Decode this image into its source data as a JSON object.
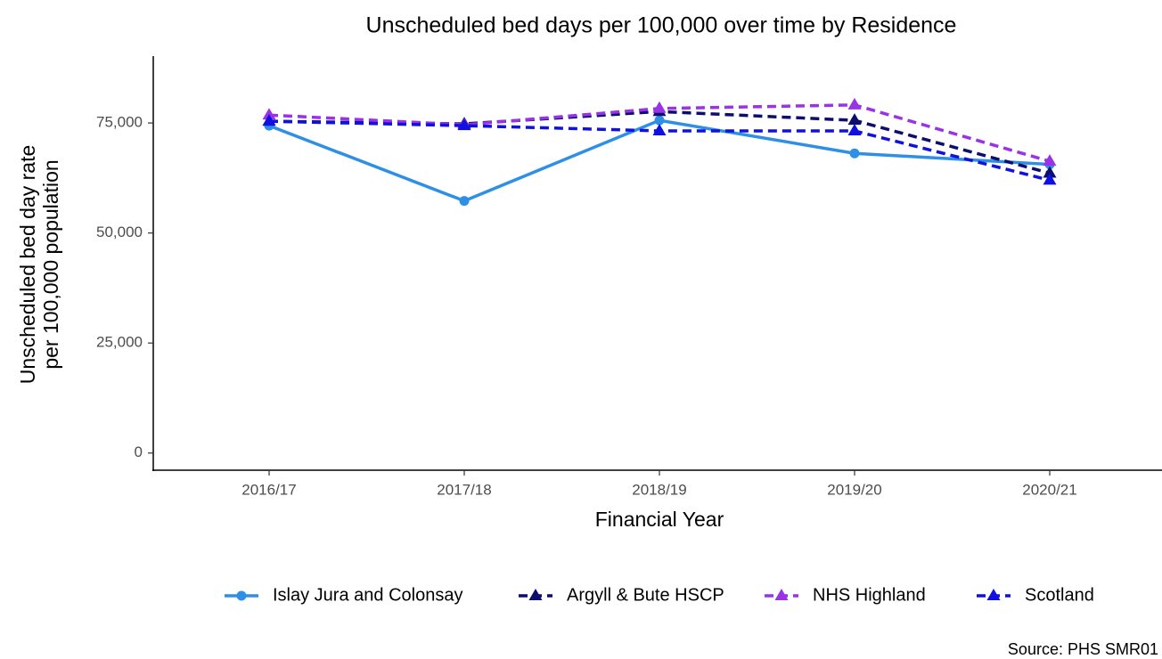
{
  "chart_data": {
    "type": "line",
    "title": "Unscheduled bed days per 100,000 over time by Residence",
    "xlabel": "Financial Year",
    "ylabel": [
      "Unscheduled bed day rate",
      "per 100,000 population"
    ],
    "categories": [
      "2016/17",
      "2017/18",
      "2018/19",
      "2019/20",
      "2020/21"
    ],
    "ylim": [
      -3900,
      90200
    ],
    "yticks": [
      0,
      {
        "value": 25000,
        "label": "25,000"
      },
      {
        "value": 50000,
        "label": "50,000"
      },
      {
        "value": 75000,
        "label": "75,000"
      }
    ],
    "grid": false,
    "legend": "bottom",
    "source": "Source: PHS SMR01",
    "series": [
      {
        "name": "Islay Jura and Colonsay",
        "color": "#2e8fe6",
        "line_style": "solid",
        "marker": "circle",
        "values": [
          74400,
          57300,
          75600,
          68100,
          65600
        ]
      },
      {
        "name": "Argyll & Bute HSCP",
        "color": "#0d0d6e",
        "line_style": "dashed",
        "marker": "triangle",
        "values": [
          75400,
          74800,
          77600,
          75600,
          63600
        ]
      },
      {
        "name": "NHS Highland",
        "color": "#9a32e6",
        "line_style": "dashed",
        "marker": "triangle",
        "values": [
          76800,
          74600,
          78300,
          79100,
          66300
        ]
      },
      {
        "name": "Scotland",
        "color": "#1010e0",
        "line_style": "dashed",
        "marker": "triangle",
        "values": [
          75400,
          74400,
          73200,
          73200,
          62000
        ]
      }
    ]
  }
}
